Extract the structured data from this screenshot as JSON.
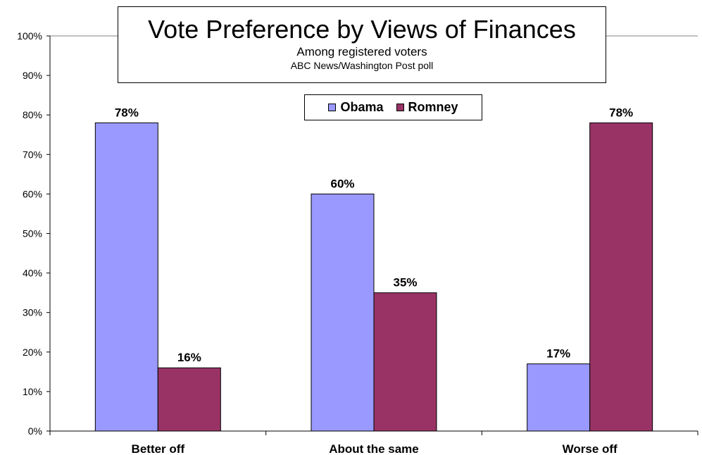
{
  "chart_data": {
    "type": "bar",
    "title": "Vote Preference by Views of Finances",
    "subtitle": "Among registered voters",
    "source": "ABC News/Washington Post poll",
    "categories": [
      "Better off",
      "About the same",
      "Worse off"
    ],
    "series": [
      {
        "name": "Obama",
        "values": [
          78,
          60,
          17
        ],
        "labels": [
          "78%",
          "60%",
          "17%"
        ],
        "color": "#9999ff"
      },
      {
        "name": "Romney",
        "values": [
          16,
          35,
          78
        ],
        "labels": [
          "16%",
          "35%",
          "78%"
        ],
        "color": "#993366"
      }
    ],
    "ylim": [
      0,
      100
    ],
    "yticks": [
      0,
      10,
      20,
      30,
      40,
      50,
      60,
      70,
      80,
      90,
      100
    ],
    "ytick_labels": [
      "0%",
      "10%",
      "20%",
      "30%",
      "40%",
      "50%",
      "60%",
      "70%",
      "80%",
      "90%",
      "100%"
    ],
    "xlabel": "",
    "ylabel": "",
    "grid": false,
    "legend_position": "top-center"
  }
}
